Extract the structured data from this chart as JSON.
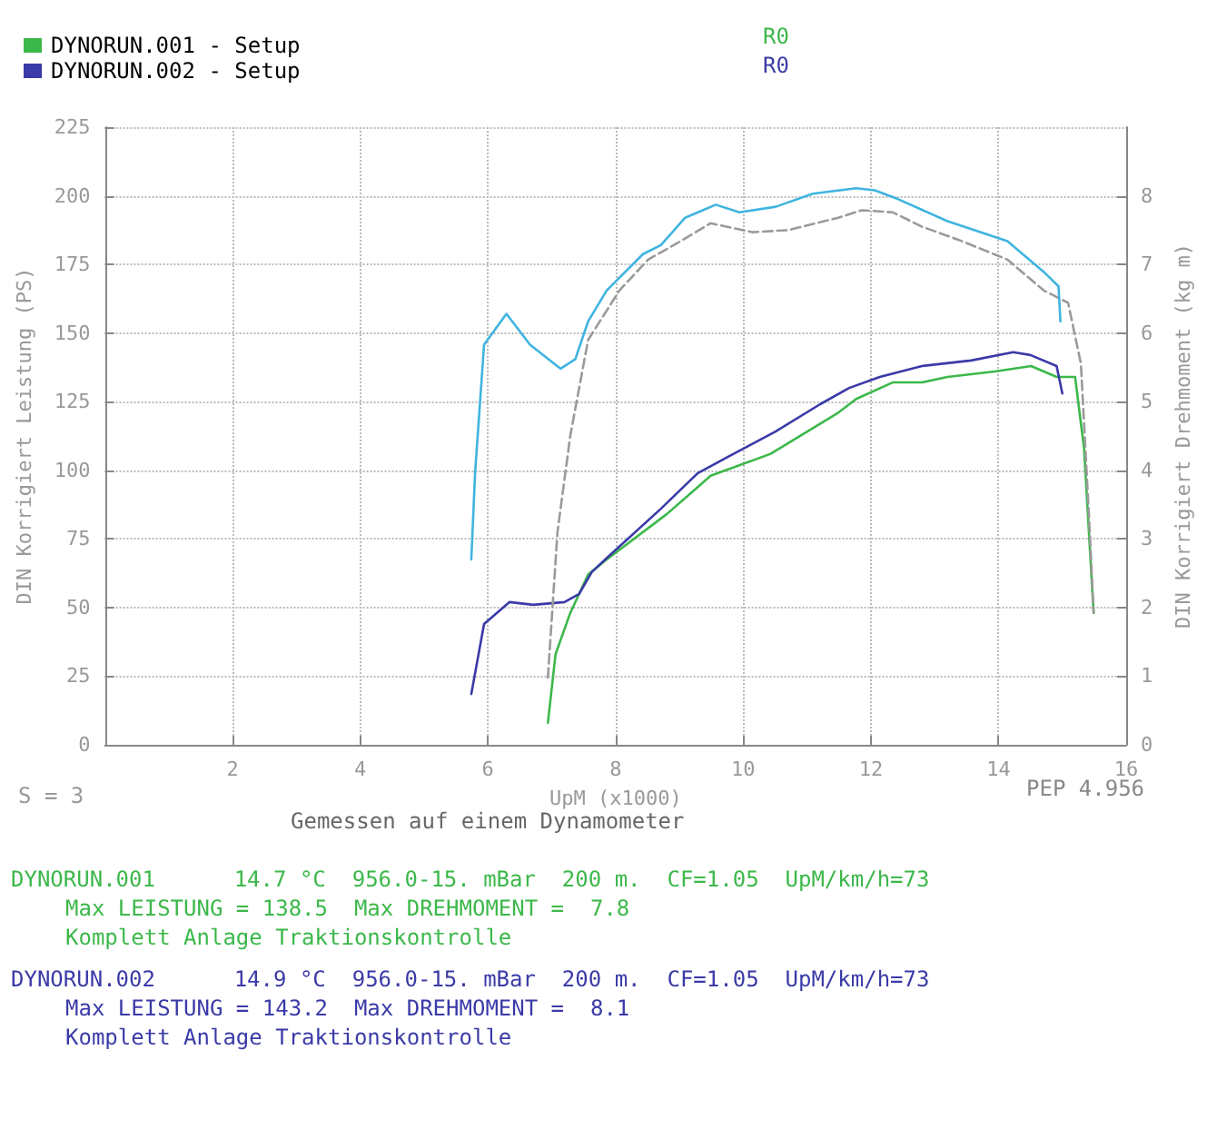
{
  "chart_data": {
    "type": "line",
    "xlabel": "UpM (x1000)",
    "ylabel": "DIN Korrigiert Leistung (PS)",
    "y2label": "DIN Korrigiert Drehmoment (kg m)",
    "xlim": [
      0,
      16
    ],
    "xticks": [
      2,
      4,
      6,
      8,
      10,
      12,
      14,
      16
    ],
    "ylim": [
      0,
      225
    ],
    "yticks": [
      0,
      25,
      50,
      75,
      100,
      125,
      150,
      175,
      200,
      225
    ],
    "y2lim": [
      0,
      9
    ],
    "y2ticks": [
      0,
      1,
      2,
      3,
      4,
      5,
      6,
      7,
      8
    ],
    "grid": true,
    "legend": "top left",
    "marker": "none",
    "series": [
      {
        "name": "DYNORUN.001 - Setup",
        "color": "#3cb84a",
        "line_style": "solid",
        "x": [
          6.94,
          7.06,
          7.29,
          7.57,
          7.86,
          8.8,
          9.49,
          10.43,
          11.49,
          11.77,
          12.34,
          12.8,
          13.2,
          13.94,
          14.51,
          14.91,
          15.2,
          15.34,
          15.49
        ],
        "values": [
          8,
          33,
          48,
          62,
          67.5,
          84,
          98,
          106,
          121,
          126,
          132,
          132,
          134,
          136,
          138,
          134,
          134,
          108,
          48
        ]
      },
      {
        "name": "DYNORUN.002 - Setup",
        "color": "#3a3aa8",
        "line_style": "solid",
        "x": [
          5.74,
          5.94,
          6.34,
          6.71,
          7.2,
          7.43,
          7.63,
          7.86,
          8.71,
          9.29,
          9.77,
          10.5,
          11.2,
          11.66,
          12.14,
          12.8,
          13.57,
          14.23,
          14.5,
          14.91,
          15.0
        ],
        "values": [
          18.5,
          44,
          52,
          51,
          52,
          55,
          63,
          68,
          86,
          99,
          105,
          114,
          124,
          130,
          134,
          138,
          140,
          143,
          142,
          138,
          128
        ]
      },
      {
        "color": "#9a9a9a",
        "axis": "y2",
        "line_style": "dashed",
        "x": [
          6.94,
          7.09,
          7.29,
          7.57,
          8.06,
          8.51,
          8.91,
          9.49,
          10.14,
          10.71,
          11.49,
          11.86,
          12.34,
          12.8,
          13.37,
          14.14,
          14.71,
          15.09,
          15.29,
          15.43,
          15.49
        ],
        "values": [
          0.98,
          3.1,
          4.5,
          5.9,
          6.62,
          7.07,
          7.28,
          7.6,
          7.47,
          7.5,
          7.68,
          7.79,
          7.76,
          7.55,
          7.36,
          7.07,
          6.62,
          6.44,
          5.56,
          3.1,
          1.93
        ]
      },
      {
        "color": "#3fb4e0",
        "axis": "y2",
        "line_style": "solid",
        "x": [
          5.74,
          5.8,
          5.94,
          6.29,
          6.66,
          7.14,
          7.37,
          7.57,
          7.86,
          8.43,
          8.71,
          9.09,
          9.57,
          9.94,
          10.51,
          11.09,
          11.77,
          12.06,
          12.43,
          13.2,
          14.14,
          14.71,
          14.94,
          14.97
        ],
        "values": [
          2.7,
          3.97,
          5.83,
          6.28,
          5.83,
          5.48,
          5.62,
          6.17,
          6.62,
          7.15,
          7.28,
          7.68,
          7.87,
          7.76,
          7.84,
          8.03,
          8.11,
          8.08,
          7.95,
          7.63,
          7.34,
          6.89,
          6.68,
          6.17
        ]
      }
    ],
    "annotations": [
      "R0",
      "R0",
      "S = 3",
      "PEP 4.956",
      "Gemessen auf einem Dynamometer",
      "DYNORUN.001      14.7 °C  956.0-15. mBar  200 m.  CF=1.05  UpM/km/h=73",
      "Max LEISTUNG = 138.5  Max DREHMOMENT =  7.8",
      "Komplett Anlage Traktionskontrolle",
      "DYNORUN.002      14.9 °C  956.0-15. mBar  200 m.  CF=1.05  UpM/km/h=73",
      "Max LEISTUNG = 143.2  Max DREHMOMENT =  8.1",
      "Komplett Anlage Traktionskontrolle"
    ]
  }
}
